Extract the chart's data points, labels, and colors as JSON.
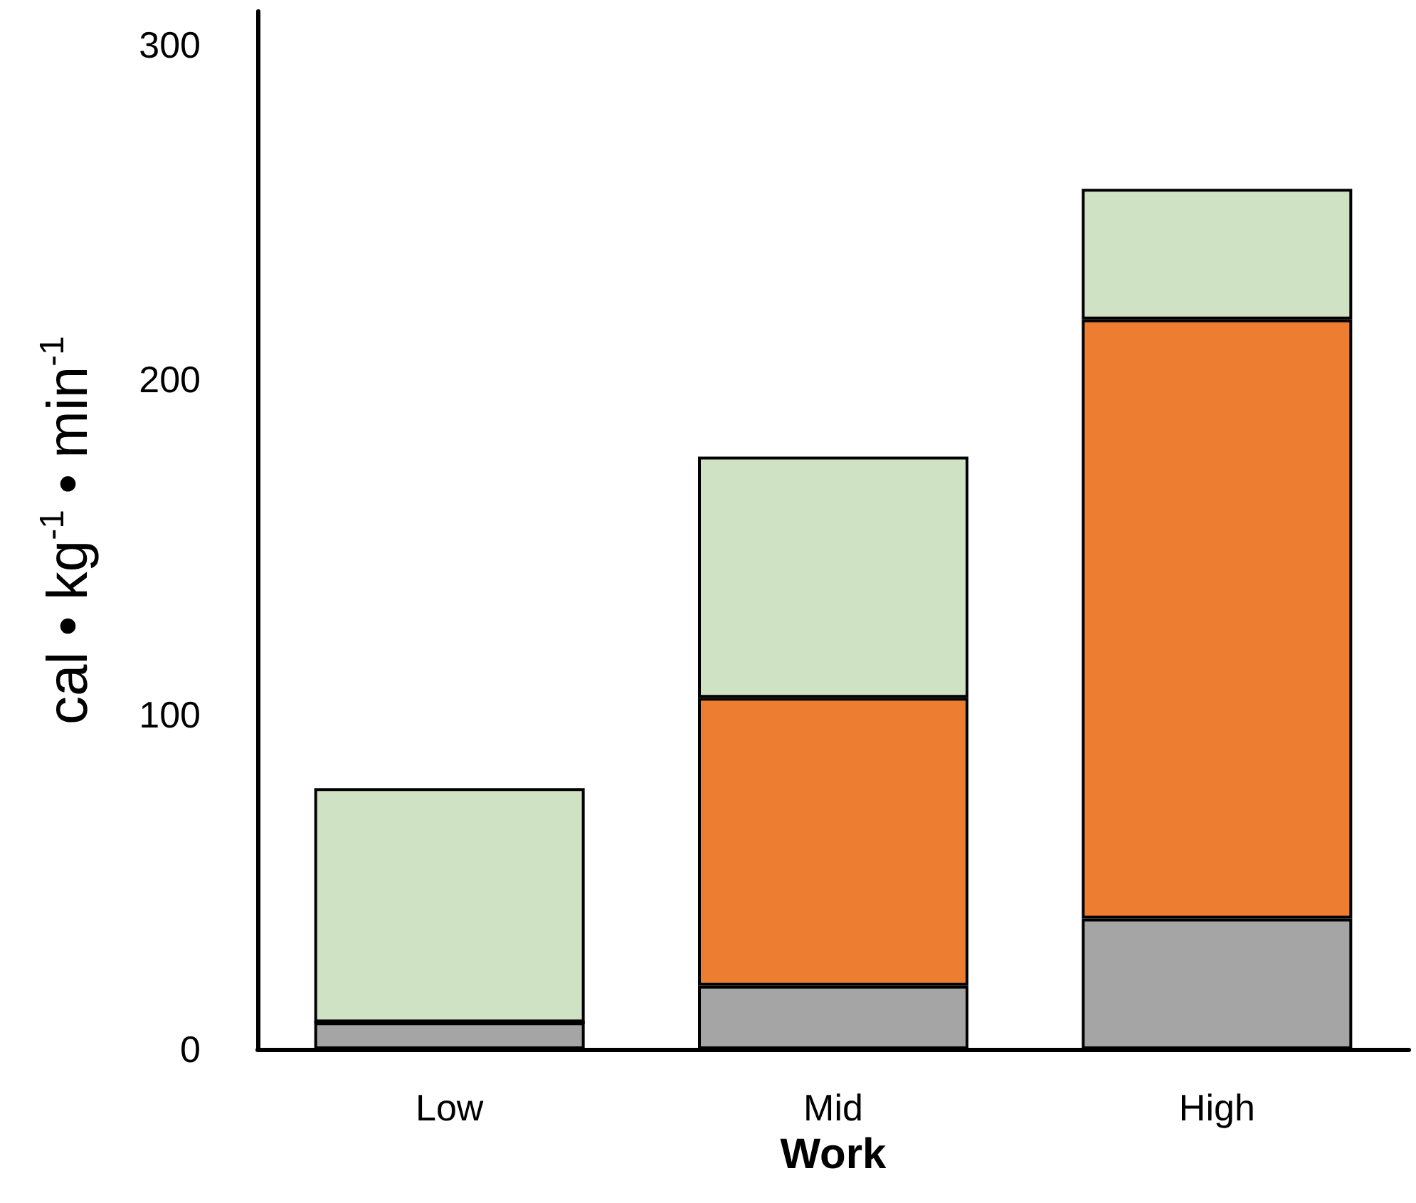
{
  "chart_data": {
    "type": "bar",
    "stacked": true,
    "xlabel": "Work",
    "ylabel": "cal • kg$^{-1}$ • min$^{-1}$",
    "categories": [
      "Low",
      "Mid",
      "High"
    ],
    "series": [
      {
        "color": "#a5a5a5",
        "values": [
          8,
          19,
          39
        ]
      },
      {
        "color": "#ed7d31",
        "values": [
          0,
          86,
          179
        ]
      },
      {
        "color": "#cfe2c3",
        "values": [
          70,
          72,
          39
        ]
      }
    ],
    "ylim": [
      0,
      310
    ],
    "yticks": [
      0,
      100,
      200,
      300
    ],
    "grid": false
  }
}
